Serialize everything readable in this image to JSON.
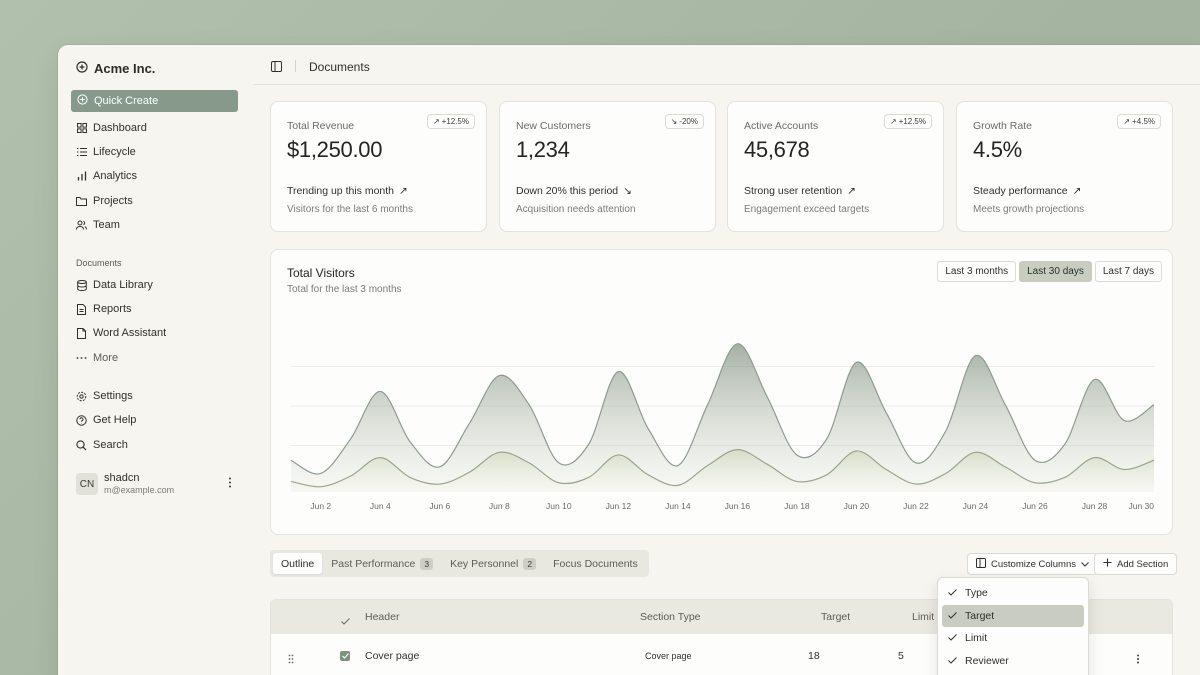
{
  "app": {
    "name": "Acme Inc."
  },
  "sidebar": {
    "quick_create": "Quick Create",
    "main_items": [
      {
        "label": "Dashboard",
        "icon": "dashboard-icon"
      },
      {
        "label": "Lifecycle",
        "icon": "list-icon"
      },
      {
        "label": "Analytics",
        "icon": "bar-chart-icon"
      },
      {
        "label": "Projects",
        "icon": "folder-icon"
      },
      {
        "label": "Team",
        "icon": "users-icon"
      }
    ],
    "documents_heading": "Documents",
    "document_items": [
      {
        "label": "Data Library",
        "icon": "database-icon"
      },
      {
        "label": "Reports",
        "icon": "report-icon"
      },
      {
        "label": "Word Assistant",
        "icon": "file-icon"
      },
      {
        "label": "More",
        "icon": "more-dots-icon"
      }
    ],
    "secondary_items": [
      {
        "label": "Settings",
        "icon": "settings-icon"
      },
      {
        "label": "Get Help",
        "icon": "help-icon"
      },
      {
        "label": "Search",
        "icon": "search-icon"
      }
    ],
    "user": {
      "initials": "CN",
      "name": "shadcn",
      "email": "m@example.com"
    }
  },
  "header": {
    "title": "Documents"
  },
  "cards": [
    {
      "label": "Total Revenue",
      "badge": "+12.5%",
      "value": "$1,250.00",
      "trend": "Trending up this month",
      "sub": "Visitors for the last 6 months",
      "direction": "up"
    },
    {
      "label": "New Customers",
      "badge": "-20%",
      "value": "1,234",
      "trend": "Down 20% this period",
      "sub": "Acquisition needs attention",
      "direction": "down"
    },
    {
      "label": "Active Accounts",
      "badge": "+12.5%",
      "value": "45,678",
      "trend": "Strong user retention",
      "sub": "Engagement exceed targets",
      "direction": "up"
    },
    {
      "label": "Growth Rate",
      "badge": "+4.5%",
      "value": "4.5%",
      "trend": "Steady performance",
      "sub": "Meets growth projections",
      "direction": "up"
    }
  ],
  "visitors": {
    "title": "Total Visitors",
    "subtitle": "Total for the last 3 months",
    "ranges": [
      "Last 3 months",
      "Last 30 days",
      "Last 7 days"
    ],
    "active_range": "Last 30 days"
  },
  "chart_data": {
    "type": "area",
    "title": "Total Visitors",
    "x": [
      "Jun 1",
      "Jun 2",
      "Jun 3",
      "Jun 4",
      "Jun 5",
      "Jun 6",
      "Jun 7",
      "Jun 8",
      "Jun 9",
      "Jun 10",
      "Jun 11",
      "Jun 12",
      "Jun 13",
      "Jun 14",
      "Jun 15",
      "Jun 16",
      "Jun 17",
      "Jun 18",
      "Jun 19",
      "Jun 20",
      "Jun 21",
      "Jun 22",
      "Jun 23",
      "Jun 24",
      "Jun 25",
      "Jun 26",
      "Jun 27",
      "Jun 28",
      "Jun 29",
      "Jun 30"
    ],
    "tick_labels": [
      "Jun 2",
      "Jun 4",
      "Jun 6",
      "Jun 8",
      "Jun 10",
      "Jun 12",
      "Jun 14",
      "Jun 16",
      "Jun 18",
      "Jun 20",
      "Jun 22",
      "Jun 24",
      "Jun 26",
      "Jun 28",
      "Jun 30"
    ],
    "series": [
      {
        "values": [
          120,
          70,
          200,
          380,
          190,
          95,
          260,
          440,
          330,
          110,
          180,
          455,
          240,
          100,
          330,
          560,
          360,
          140,
          200,
          490,
          300,
          110,
          230,
          515,
          330,
          120,
          180,
          425,
          270,
          330
        ]
      },
      {
        "values": [
          40,
          20,
          60,
          130,
          55,
          30,
          75,
          150,
          110,
          35,
          55,
          140,
          65,
          25,
          100,
          160,
          105,
          40,
          65,
          155,
          85,
          30,
          70,
          150,
          95,
          35,
          55,
          130,
          85,
          120
        ]
      }
    ],
    "ylim": [
      0,
      650
    ],
    "grid": true
  },
  "tabs": [
    {
      "label": "Outline",
      "count": ""
    },
    {
      "label": "Past Performance",
      "count": "3"
    },
    {
      "label": "Key Personnel",
      "count": "2"
    },
    {
      "label": "Focus Documents",
      "count": ""
    }
  ],
  "toolbar": {
    "customize": "Customize Columns",
    "add_section": "Add Section"
  },
  "table": {
    "headers": [
      "Header",
      "Section Type",
      "Target",
      "Limit"
    ],
    "rows": [
      {
        "header": "Cover page",
        "type": "Cover page",
        "target": "18",
        "limit": "5"
      }
    ]
  },
  "column_menu": {
    "items": [
      "Type",
      "Target",
      "Limit",
      "Reviewer"
    ],
    "active": "Target"
  },
  "colors": {
    "accent": "#87998b",
    "series_dark": "#8e9b8f",
    "series_light": "#c9d1bc",
    "background": "#a9b9a5"
  }
}
